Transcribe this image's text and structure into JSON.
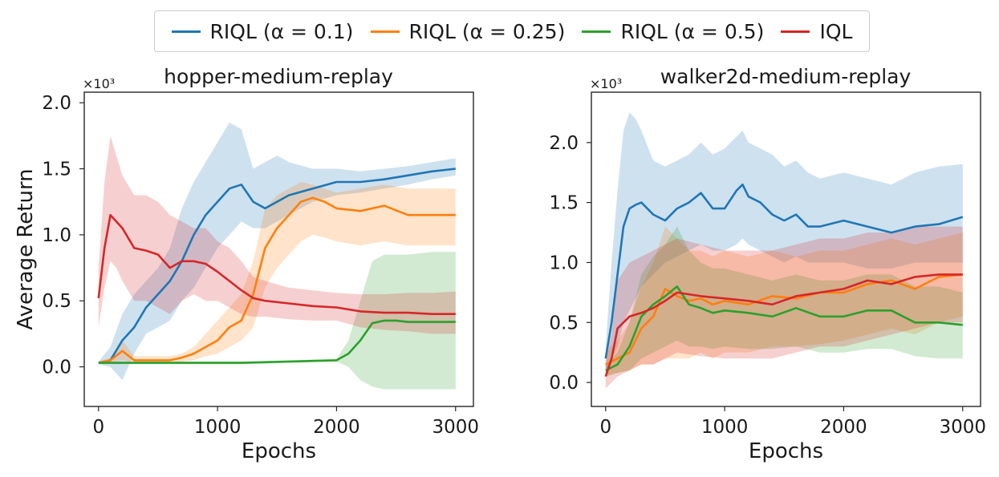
{
  "colors": {
    "blue": "#1f77b4",
    "orange": "#ff7f0e",
    "green": "#2ca02c",
    "red": "#d62728"
  },
  "legend": {
    "items": [
      {
        "label": "RIQL (α = 0.1)",
        "color": "#1f77b4"
      },
      {
        "label": "RIQL (α = 0.25)",
        "color": "#ff7f0e"
      },
      {
        "label": "RIQL (α = 0.5)",
        "color": "#2ca02c"
      },
      {
        "label": "IQL",
        "color": "#d62728"
      }
    ]
  },
  "chart_data": [
    {
      "type": "line",
      "title": "hopper-medium-replay",
      "xlabel": "Epochs",
      "ylabel": "Average Return",
      "multiplier": "×10³",
      "xlim": [
        -120,
        3150
      ],
      "ylim": [
        -0.3,
        2.08
      ],
      "xticks": [
        0,
        1000,
        2000,
        3000
      ],
      "xtick_labels": [
        "0",
        "1000",
        "2000",
        "3000"
      ],
      "yticks": [
        0.0,
        0.5,
        1.0,
        1.5,
        2.0
      ],
      "ytick_labels": [
        "0.0",
        "0.5",
        "1.0",
        "1.5",
        "2.0"
      ],
      "series": [
        {
          "name": "RIQL (α = 0.1)",
          "color": "#1f77b4",
          "x": [
            0,
            100,
            200,
            300,
            400,
            500,
            600,
            700,
            800,
            900,
            1000,
            1100,
            1200,
            1300,
            1400,
            1500,
            1600,
            1800,
            2000,
            2200,
            2400,
            2600,
            2800,
            3000
          ],
          "y": [
            0.03,
            0.05,
            0.2,
            0.3,
            0.45,
            0.55,
            0.65,
            0.8,
            1.0,
            1.15,
            1.25,
            1.35,
            1.38,
            1.25,
            1.2,
            1.25,
            1.3,
            1.35,
            1.4,
            1.4,
            1.42,
            1.45,
            1.48,
            1.5
          ],
          "lower": [
            0.02,
            0.0,
            -0.1,
            0.1,
            0.25,
            0.3,
            0.35,
            0.5,
            0.6,
            0.75,
            0.9,
            1.0,
            1.1,
            1.05,
            1.05,
            1.1,
            1.15,
            1.25,
            1.3,
            1.32,
            1.35,
            1.38,
            1.42,
            1.45
          ],
          "upper": [
            0.04,
            0.15,
            0.4,
            0.55,
            0.65,
            0.75,
            0.9,
            1.2,
            1.4,
            1.55,
            1.7,
            1.85,
            1.8,
            1.5,
            1.55,
            1.6,
            1.55,
            1.5,
            1.5,
            1.48,
            1.5,
            1.52,
            1.55,
            1.58
          ]
        },
        {
          "name": "RIQL (α = 0.25)",
          "color": "#ff7f0e",
          "x": [
            0,
            100,
            200,
            300,
            400,
            500,
            600,
            700,
            800,
            900,
            1000,
            1100,
            1200,
            1300,
            1400,
            1500,
            1600,
            1700,
            1800,
            1900,
            2000,
            2200,
            2400,
            2600,
            2800,
            3000
          ],
          "y": [
            0.03,
            0.05,
            0.12,
            0.05,
            0.05,
            0.05,
            0.05,
            0.07,
            0.1,
            0.15,
            0.2,
            0.3,
            0.35,
            0.55,
            0.9,
            1.05,
            1.15,
            1.25,
            1.28,
            1.25,
            1.2,
            1.18,
            1.22,
            1.15,
            1.15,
            1.15
          ],
          "lower": [
            0.02,
            0.03,
            0.05,
            0.03,
            0.03,
            0.03,
            0.03,
            0.04,
            0.05,
            0.08,
            0.1,
            0.15,
            0.2,
            0.3,
            0.6,
            0.75,
            0.85,
            0.95,
            1.0,
            0.98,
            0.95,
            0.92,
            0.95,
            0.92,
            0.92,
            0.92
          ],
          "upper": [
            0.04,
            0.07,
            0.2,
            0.08,
            0.08,
            0.08,
            0.08,
            0.1,
            0.15,
            0.25,
            0.35,
            0.45,
            0.55,
            0.8,
            1.2,
            1.3,
            1.35,
            1.4,
            1.38,
            1.35,
            1.32,
            1.35,
            1.38,
            1.35,
            1.35,
            1.35
          ]
        },
        {
          "name": "RIQL (α = 0.5)",
          "color": "#2ca02c",
          "x": [
            0,
            200,
            400,
            600,
            800,
            1000,
            1200,
            1400,
            1600,
            1800,
            2000,
            2100,
            2200,
            2300,
            2400,
            2500,
            2600,
            2800,
            3000
          ],
          "y": [
            0.03,
            0.03,
            0.03,
            0.03,
            0.03,
            0.03,
            0.03,
            0.035,
            0.04,
            0.045,
            0.05,
            0.1,
            0.2,
            0.33,
            0.35,
            0.35,
            0.34,
            0.34,
            0.34
          ],
          "lower": [
            0.02,
            0.02,
            0.02,
            0.02,
            0.02,
            0.02,
            0.02,
            0.025,
            0.03,
            0.035,
            0.04,
            0.0,
            -0.1,
            -0.15,
            -0.17,
            -0.17,
            -0.17,
            -0.17,
            -0.17
          ],
          "upper": [
            0.04,
            0.04,
            0.04,
            0.04,
            0.04,
            0.04,
            0.04,
            0.045,
            0.05,
            0.055,
            0.06,
            0.2,
            0.5,
            0.8,
            0.85,
            0.85,
            0.85,
            0.87,
            0.87
          ]
        },
        {
          "name": "IQL",
          "color": "#d62728",
          "x": [
            0,
            50,
            100,
            150,
            200,
            300,
            400,
            500,
            600,
            700,
            800,
            900,
            1000,
            1100,
            1200,
            1300,
            1400,
            1600,
            1800,
            2000,
            2200,
            2400,
            2600,
            2800,
            3000
          ],
          "y": [
            0.52,
            0.9,
            1.15,
            1.1,
            1.05,
            0.9,
            0.88,
            0.85,
            0.75,
            0.8,
            0.8,
            0.78,
            0.72,
            0.65,
            0.58,
            0.52,
            0.5,
            0.48,
            0.46,
            0.45,
            0.42,
            0.41,
            0.41,
            0.4,
            0.4
          ],
          "lower": [
            0.3,
            0.6,
            0.8,
            0.75,
            0.65,
            0.5,
            0.5,
            0.45,
            0.4,
            0.5,
            0.55,
            0.5,
            0.5,
            0.45,
            0.4,
            0.38,
            0.38,
            0.36,
            0.35,
            0.35,
            0.3,
            0.28,
            0.27,
            0.25,
            0.25
          ],
          "upper": [
            0.75,
            1.4,
            1.75,
            1.6,
            1.45,
            1.3,
            1.3,
            1.25,
            1.15,
            1.1,
            1.05,
            1.05,
            0.95,
            0.9,
            0.8,
            0.68,
            0.65,
            0.6,
            0.58,
            0.56,
            0.55,
            0.55,
            0.56,
            0.56,
            0.57
          ]
        }
      ]
    },
    {
      "type": "line",
      "title": "walker2d-medium-replay",
      "xlabel": "Epochs",
      "ylabel": "",
      "multiplier": "×10³",
      "xlim": [
        -120,
        3150
      ],
      "ylim": [
        -0.2,
        2.42
      ],
      "xticks": [
        0,
        1000,
        2000,
        3000
      ],
      "xtick_labels": [
        "0",
        "1000",
        "2000",
        "3000"
      ],
      "yticks": [
        0.0,
        0.5,
        1.0,
        1.5,
        2.0
      ],
      "ytick_labels": [
        "0.0",
        "0.5",
        "1.0",
        "1.5",
        "2.0"
      ],
      "series": [
        {
          "name": "RIQL (α = 0.1)",
          "color": "#1f77b4",
          "x": [
            0,
            50,
            100,
            150,
            200,
            250,
            300,
            400,
            500,
            600,
            700,
            800,
            900,
            1000,
            1100,
            1150,
            1200,
            1300,
            1400,
            1500,
            1600,
            1700,
            1800,
            2000,
            2200,
            2400,
            2600,
            2800,
            3000
          ],
          "y": [
            0.2,
            0.5,
            0.9,
            1.3,
            1.45,
            1.48,
            1.5,
            1.4,
            1.35,
            1.45,
            1.5,
            1.58,
            1.45,
            1.45,
            1.6,
            1.65,
            1.55,
            1.5,
            1.4,
            1.35,
            1.4,
            1.3,
            1.3,
            1.35,
            1.3,
            1.25,
            1.3,
            1.32,
            1.38
          ],
          "lower": [
            0.1,
            0.2,
            0.3,
            0.5,
            0.6,
            0.7,
            0.8,
            0.9,
            1.0,
            1.05,
            1.1,
            1.15,
            1.1,
            1.1,
            1.15,
            1.2,
            1.15,
            1.1,
            1.05,
            1.0,
            1.05,
            1.0,
            1.0,
            1.0,
            0.95,
            0.95,
            1.0,
            1.0,
            1.0
          ],
          "upper": [
            0.3,
            1.0,
            1.6,
            2.1,
            2.25,
            2.2,
            2.1,
            1.85,
            1.8,
            1.85,
            1.9,
            2.0,
            1.9,
            1.95,
            2.05,
            2.1,
            2.0,
            1.95,
            1.9,
            1.8,
            1.85,
            1.75,
            1.7,
            1.75,
            1.7,
            1.65,
            1.75,
            1.8,
            1.82
          ]
        },
        {
          "name": "RIQL (α = 0.25)",
          "color": "#ff7f0e",
          "x": [
            0,
            100,
            200,
            300,
            400,
            500,
            600,
            700,
            800,
            900,
            1000,
            1200,
            1400,
            1600,
            1800,
            2000,
            2200,
            2400,
            2600,
            2800,
            3000
          ],
          "y": [
            0.15,
            0.2,
            0.25,
            0.45,
            0.55,
            0.78,
            0.72,
            0.68,
            0.7,
            0.65,
            0.68,
            0.65,
            0.72,
            0.7,
            0.75,
            0.75,
            0.82,
            0.85,
            0.78,
            0.88,
            0.9
          ],
          "lower": [
            0.05,
            0.08,
            0.1,
            0.15,
            0.15,
            0.2,
            0.2,
            0.2,
            0.25,
            0.2,
            0.25,
            0.25,
            0.3,
            0.3,
            0.32,
            0.35,
            0.4,
            0.45,
            0.4,
            0.5,
            0.55
          ],
          "upper": [
            0.25,
            0.35,
            0.5,
            0.8,
            1.0,
            1.3,
            1.2,
            1.1,
            1.1,
            1.05,
            1.1,
            1.05,
            1.1,
            1.05,
            1.1,
            1.1,
            1.15,
            1.2,
            1.15,
            1.2,
            1.25
          ]
        },
        {
          "name": "RIQL (α = 0.5)",
          "color": "#2ca02c",
          "x": [
            0,
            100,
            200,
            300,
            400,
            500,
            600,
            700,
            800,
            900,
            1000,
            1200,
            1400,
            1600,
            1800,
            2000,
            2200,
            2400,
            2600,
            2800,
            3000
          ],
          "y": [
            0.1,
            0.15,
            0.3,
            0.55,
            0.65,
            0.72,
            0.8,
            0.65,
            0.62,
            0.58,
            0.6,
            0.58,
            0.55,
            0.62,
            0.55,
            0.55,
            0.6,
            0.6,
            0.5,
            0.5,
            0.48
          ],
          "lower": [
            0.05,
            0.08,
            0.1,
            0.2,
            0.25,
            0.3,
            0.35,
            0.3,
            0.3,
            0.28,
            0.3,
            0.28,
            0.28,
            0.3,
            0.25,
            0.25,
            0.28,
            0.28,
            0.22,
            0.2,
            0.2
          ],
          "upper": [
            0.15,
            0.25,
            0.5,
            0.9,
            1.05,
            1.15,
            1.3,
            1.1,
            1.0,
            0.95,
            0.95,
            0.9,
            0.85,
            0.9,
            0.85,
            0.85,
            0.9,
            0.9,
            0.8,
            0.8,
            0.75
          ]
        },
        {
          "name": "IQL",
          "color": "#d62728",
          "x": [
            0,
            50,
            100,
            200,
            300,
            400,
            500,
            600,
            800,
            1000,
            1200,
            1400,
            1600,
            1800,
            2000,
            2200,
            2400,
            2600,
            2800,
            3000
          ],
          "y": [
            0.05,
            0.2,
            0.45,
            0.55,
            0.58,
            0.62,
            0.68,
            0.75,
            0.72,
            0.7,
            0.68,
            0.65,
            0.72,
            0.75,
            0.78,
            0.85,
            0.82,
            0.88,
            0.9,
            0.9
          ],
          "lower": [
            -0.05,
            0.0,
            0.05,
            0.1,
            0.15,
            0.15,
            0.2,
            0.25,
            0.22,
            0.2,
            0.2,
            0.2,
            0.25,
            0.3,
            0.3,
            0.35,
            0.4,
            0.45,
            0.5,
            0.5
          ],
          "upper": [
            0.15,
            0.4,
            0.85,
            1.0,
            1.05,
            1.1,
            1.15,
            1.2,
            1.15,
            1.1,
            1.1,
            1.1,
            1.15,
            1.2,
            1.2,
            1.25,
            1.25,
            1.3,
            1.3,
            1.3
          ]
        }
      ]
    }
  ]
}
